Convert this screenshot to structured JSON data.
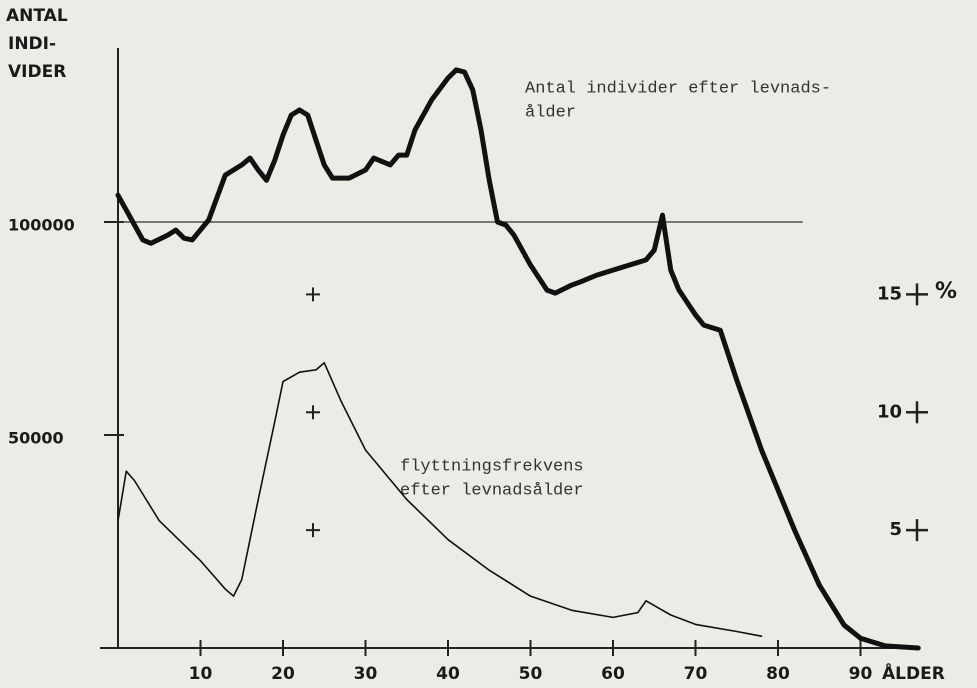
{
  "chart_data": {
    "type": "line",
    "ylabel": [
      "ANTAL",
      "INDI-",
      "VIDER"
    ],
    "xlabel": "ÅLDER",
    "y2label": "%",
    "annotations": [
      [
        "Antal individer efter levnads-",
        "ålder"
      ],
      [
        "flyttningsfrekvens",
        "efter levnadsålder"
      ]
    ],
    "xlim": [
      0,
      100
    ],
    "xticks": [
      10,
      20,
      30,
      40,
      50,
      60,
      70,
      80,
      90
    ],
    "ylim": [
      0,
      140000
    ],
    "yticks": [
      50000,
      100000
    ],
    "y2lim": [
      0,
      25.3
    ],
    "y2ticks": [
      5,
      10,
      15
    ],
    "reference_line": {
      "y": 100000,
      "x": [
        0,
        83
      ]
    },
    "series": [
      {
        "color": "#111111",
        "x": [
          0,
          1,
          3,
          4,
          6,
          7,
          8,
          9,
          11,
          13,
          15,
          16,
          17,
          18,
          19,
          20,
          21,
          22,
          23,
          24,
          25,
          26,
          28,
          30,
          31,
          33,
          34,
          35,
          36,
          38,
          40,
          41,
          42,
          43,
          44,
          45,
          46,
          47,
          48,
          50,
          52,
          53,
          55,
          56,
          58,
          60,
          62,
          64,
          65,
          66,
          67,
          68,
          70,
          71,
          73,
          75,
          78,
          80,
          82,
          85,
          88,
          90,
          93,
          97
        ],
        "values": [
          106300,
          102800,
          95800,
          95000,
          96900,
          98100,
          96200,
          95800,
          100500,
          111000,
          113400,
          115000,
          112200,
          109800,
          114500,
          120400,
          125100,
          126300,
          125100,
          119200,
          113400,
          110300,
          110300,
          112200,
          115000,
          113400,
          115700,
          115700,
          121600,
          128600,
          133800,
          135700,
          135200,
          131000,
          121600,
          109800,
          100000,
          99300,
          96900,
          89900,
          84000,
          83300,
          85200,
          85900,
          87500,
          88700,
          89900,
          91100,
          93400,
          101600,
          88700,
          84000,
          78200,
          75800,
          74600,
          62900,
          46500,
          37100,
          27700,
          14800,
          5400,
          2300,
          500,
          0
        ]
      },
      {
        "color": "#111111",
        "axis": "y2",
        "x": [
          0,
          1,
          2,
          5,
          10,
          13,
          14,
          15,
          17,
          19,
          20,
          22,
          24,
          25,
          27,
          30,
          35,
          40,
          45,
          50,
          55,
          60,
          63,
          64,
          65,
          67,
          70,
          75,
          78
        ],
        "values": [
          5.4,
          7.5,
          7.1,
          5.4,
          3.7,
          2.5,
          2.2,
          2.9,
          6.3,
          9.6,
          11.3,
          11.7,
          11.8,
          12.1,
          10.5,
          8.4,
          6.3,
          4.6,
          3.3,
          2.2,
          1.6,
          1.3,
          1.5,
          2.0,
          1.8,
          1.4,
          1.0,
          0.7,
          0.5
        ]
      }
    ]
  }
}
